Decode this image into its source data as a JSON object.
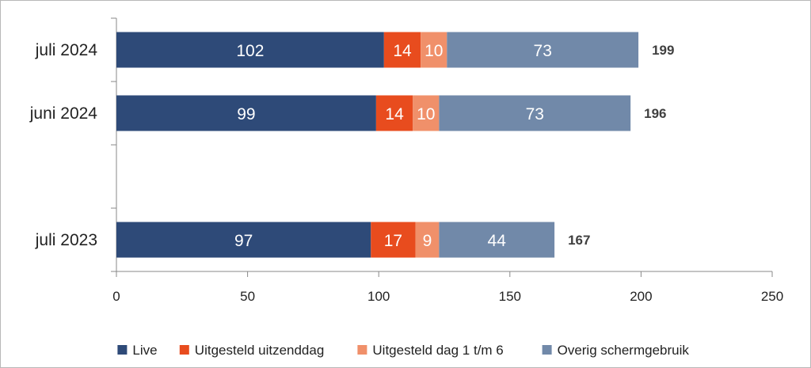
{
  "chart_data": {
    "type": "bar",
    "orientation": "horizontal",
    "stacked": true,
    "categories": [
      "juli 2024",
      "juni 2024",
      "",
      "juli 2023"
    ],
    "series": [
      {
        "name": "Live",
        "color": "#2e4a78",
        "values": [
          102,
          99,
          null,
          97
        ]
      },
      {
        "name": "Uitgesteld uitzenddag",
        "color": "#e84c1e",
        "values": [
          14,
          14,
          null,
          17
        ]
      },
      {
        "name": "Uitgesteld dag 1 t/m 6",
        "color": "#f0906a",
        "values": [
          10,
          10,
          null,
          9
        ]
      },
      {
        "name": "Overig schermgebruik",
        "color": "#7189a9",
        "values": [
          73,
          73,
          null,
          44
        ]
      }
    ],
    "totals": [
      199,
      196,
      null,
      167
    ],
    "x_ticks": [
      0,
      50,
      100,
      150,
      200,
      250
    ],
    "xlim": [
      0,
      250
    ],
    "grid": false,
    "legend_position": "bottom",
    "title": "",
    "xlabel": "",
    "ylabel": ""
  }
}
